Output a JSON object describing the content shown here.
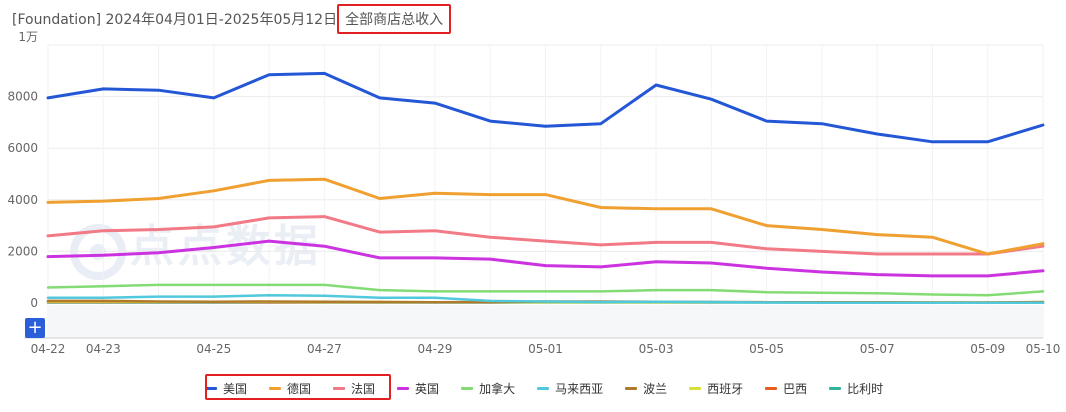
{
  "title": {
    "prefix": "[Foundation] 2024年04月01日-2025年05月12日",
    "highlight": "全部商店总收入"
  },
  "watermark": {
    "text": "点点数据"
  },
  "controls": {
    "zoom_label": "+"
  },
  "chart_data": {
    "type": "line",
    "unit_label": "1万",
    "ylim": [
      -250,
      10000
    ],
    "yticks": [
      0,
      2000,
      4000,
      6000,
      8000
    ],
    "ytick_labels": [
      "0",
      "2000",
      "4000",
      "6000",
      "8000"
    ],
    "x": [
      "04-22",
      "04-23",
      "04-24",
      "04-25",
      "04-26",
      "04-27",
      "04-28",
      "04-29",
      "04-30",
      "05-01",
      "05-02",
      "05-03",
      "05-04",
      "05-05",
      "05-06",
      "05-07",
      "05-08",
      "05-09",
      "05-10"
    ],
    "x_tick_labels": [
      "04-22",
      "04-23",
      "04-25",
      "04-27",
      "04-29",
      "05-01",
      "05-03",
      "05-05",
      "05-07",
      "05-09",
      "05-10"
    ],
    "grid": true,
    "legend_position": "bottom",
    "series": [
      {
        "name": "美国",
        "color": "#2457d6",
        "values": [
          7950,
          8300,
          8250,
          7950,
          8850,
          8900,
          7950,
          7750,
          7050,
          6850,
          6950,
          8450,
          7900,
          7050,
          6950,
          6550,
          6250,
          6250,
          6900
        ]
      },
      {
        "name": "德国",
        "color": "#f0a030",
        "values": [
          3900,
          3950,
          4050,
          4350,
          4750,
          4800,
          4050,
          4250,
          4200,
          4200,
          3700,
          3650,
          3650,
          3000,
          2850,
          2650,
          2550,
          1900,
          2300
        ]
      },
      {
        "name": "法国",
        "color": "#f27a87",
        "values": [
          2600,
          2800,
          2850,
          2950,
          3300,
          3350,
          2750,
          2800,
          2550,
          2400,
          2250,
          2350,
          2350,
          2100,
          2000,
          1900,
          1900,
          1900,
          2200
        ]
      },
      {
        "name": "英国",
        "color": "#cc33e0",
        "values": [
          1800,
          1850,
          1950,
          2150,
          2400,
          2200,
          1750,
          1750,
          1700,
          1450,
          1400,
          1600,
          1550,
          1350,
          1200,
          1100,
          1050,
          1050,
          1250
        ]
      },
      {
        "name": "加拿大",
        "color": "#82dc73",
        "values": [
          600,
          650,
          700,
          700,
          700,
          700,
          500,
          450,
          450,
          450,
          450,
          500,
          500,
          420,
          400,
          380,
          330,
          300,
          450
        ]
      },
      {
        "name": "马来西亚",
        "color": "#52c8dc",
        "values": [
          200,
          200,
          250,
          250,
          300,
          280,
          200,
          200,
          80,
          60,
          40,
          50,
          40,
          20,
          10,
          10,
          10,
          10,
          10
        ]
      },
      {
        "name": "波兰",
        "color": "#b07a2a",
        "values": [
          80,
          80,
          60,
          50,
          60,
          50,
          40,
          30,
          30,
          60,
          60,
          50,
          40,
          30,
          30,
          30,
          20,
          20,
          40
        ]
      },
      {
        "name": "西班牙",
        "color": "#d6e03a",
        "values": [
          60,
          60,
          50,
          50,
          50,
          40,
          40,
          30,
          30,
          30,
          30,
          30,
          30,
          30,
          30,
          20,
          20,
          20,
          30
        ]
      },
      {
        "name": "巴西",
        "color": "#e85c20",
        "values": [
          40,
          40,
          40,
          40,
          30,
          30,
          30,
          30,
          40,
          40,
          40,
          40,
          30,
          30,
          30,
          20,
          20,
          20,
          20
        ]
      },
      {
        "name": "比利时",
        "color": "#34b39c",
        "values": [
          20,
          20,
          20,
          20,
          20,
          20,
          20,
          20,
          20,
          20,
          20,
          20,
          20,
          20,
          20,
          10,
          10,
          10,
          10
        ]
      }
    ]
  }
}
